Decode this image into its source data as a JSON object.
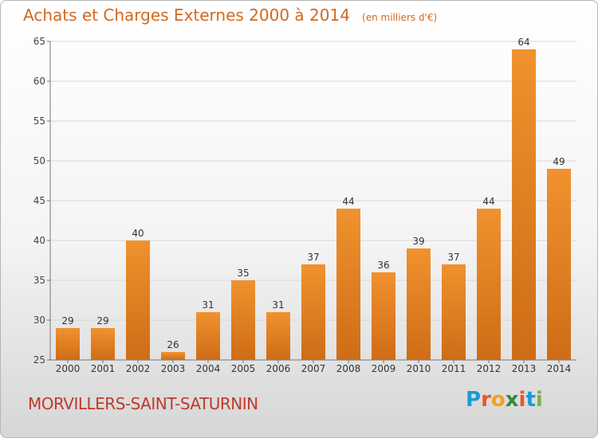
{
  "header": {
    "title": "Achats et Charges Externes 2000 à 2014",
    "unit": "(en milliers d'€)"
  },
  "footer": {
    "town": "MORVILLERS-SAINT-SATURNIN",
    "brand": "Proxiti",
    "brand_letters": [
      {
        "char": "P",
        "color": "#1a9bd7"
      },
      {
        "char": "r",
        "color": "#e8562a"
      },
      {
        "char": "o",
        "color": "#f0a21c"
      },
      {
        "char": "x",
        "color": "#2e8b3e"
      },
      {
        "char": "i",
        "color": "#e8562a"
      },
      {
        "char": "t",
        "color": "#1a9bd7"
      },
      {
        "char": "i",
        "color": "#7cb342"
      }
    ]
  },
  "chart_data": {
    "type": "bar",
    "title": "Achats et Charges Externes 2000 à 2014",
    "subtitle": "(en milliers d'€)",
    "xlabel": "",
    "ylabel": "",
    "categories": [
      "2000",
      "2001",
      "2002",
      "2003",
      "2004",
      "2005",
      "2006",
      "2007",
      "2008",
      "2009",
      "2010",
      "2011",
      "2012",
      "2013",
      "2014"
    ],
    "values": [
      29,
      29,
      40,
      26,
      31,
      35,
      31,
      37,
      44,
      36,
      39,
      37,
      44,
      64,
      49
    ],
    "ylim": [
      25,
      65
    ],
    "yticks": [
      25,
      30,
      35,
      40,
      45,
      50,
      55,
      60,
      65
    ],
    "grid": true,
    "bar_color": "#f0922e",
    "bar_color_dark": "#cf6c17"
  }
}
